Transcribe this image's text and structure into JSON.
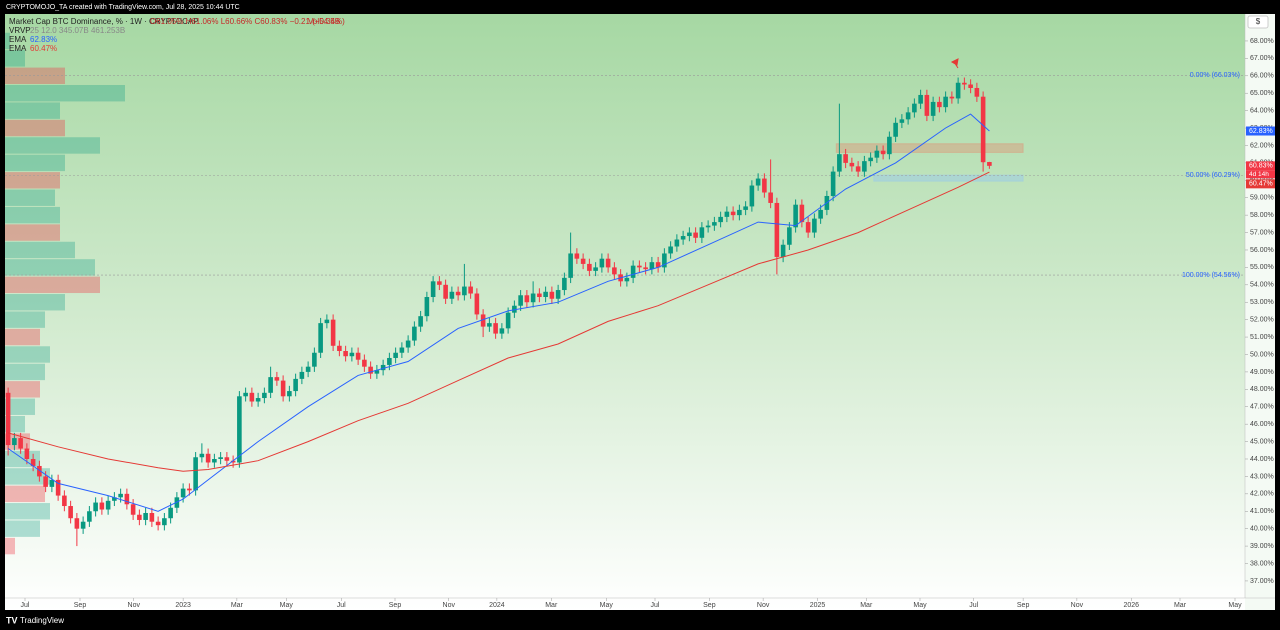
{
  "chart_data": {
    "type": "candlestick",
    "watermark": "CRYPTOMOJO_TA created with TradingView.com, Jul 28, 2025 10:44 UTC",
    "title": "Market Cap BTC Dominance, % · 1W · CRYPTOCAP",
    "ohlc_text": "O61.05% H61.06% L60.66% C60.83% −0.21 (−0.34%)",
    "volume_text": "Vol54.5B",
    "currency_button": "$",
    "brand": "TradingView",
    "up_color": "#089981",
    "down_color": "#f23645",
    "ylim": [
      36.02,
      69.49
    ],
    "xlim": [
      0,
      198.4
    ],
    "yticks": [
      {
        "value": 37,
        "label": "37.00%"
      },
      {
        "value": 38,
        "label": "38.00%"
      },
      {
        "value": 39,
        "label": "39.00%"
      },
      {
        "value": 40,
        "label": "40.00%"
      },
      {
        "value": 41,
        "label": "41.00%"
      },
      {
        "value": 42,
        "label": "42.00%"
      },
      {
        "value": 43,
        "label": "43.00%"
      },
      {
        "value": 44,
        "label": "44.00%"
      },
      {
        "value": 45,
        "label": "45.00%"
      },
      {
        "value": 46,
        "label": "46.00%"
      },
      {
        "value": 47,
        "label": "47.00%"
      },
      {
        "value": 48,
        "label": "48.00%"
      },
      {
        "value": 49,
        "label": "49.00%"
      },
      {
        "value": 50,
        "label": "50.00%"
      },
      {
        "value": 51,
        "label": "51.00%"
      },
      {
        "value": 52,
        "label": "52.00%"
      },
      {
        "value": 53,
        "label": "53.00%"
      },
      {
        "value": 54,
        "label": "54.00%"
      },
      {
        "value": 55,
        "label": "55.00%"
      },
      {
        "value": 56,
        "label": "56.00%"
      },
      {
        "value": 57,
        "label": "57.00%"
      },
      {
        "value": 58,
        "label": "58.00%"
      },
      {
        "value": 59,
        "label": "59.00%"
      },
      {
        "value": 60,
        "label": "60.00%"
      },
      {
        "value": 61,
        "label": "61.00%"
      },
      {
        "value": 62,
        "label": "62.00%"
      },
      {
        "value": 63,
        "label": "63.00%"
      },
      {
        "value": 64,
        "label": "64.00%"
      },
      {
        "value": 65,
        "label": "65.00%"
      },
      {
        "value": 66,
        "label": "66.00%"
      },
      {
        "value": 67,
        "label": "67.00%"
      },
      {
        "value": 68,
        "label": "68.00%"
      }
    ],
    "xticks": [
      {
        "value": 3.2,
        "label": "Jul"
      },
      {
        "value": 12,
        "label": "Sep"
      },
      {
        "value": 20.6,
        "label": "Nov"
      },
      {
        "value": 28.5,
        "label": "2023"
      },
      {
        "value": 37.1,
        "label": "Mar"
      },
      {
        "value": 45,
        "label": "May"
      },
      {
        "value": 53.8,
        "label": "Jul"
      },
      {
        "value": 62.4,
        "label": "Sep"
      },
      {
        "value": 71,
        "label": "Nov"
      },
      {
        "value": 78.7,
        "label": "2024"
      },
      {
        "value": 87.4,
        "label": "Mar"
      },
      {
        "value": 96.2,
        "label": "May"
      },
      {
        "value": 104,
        "label": "Jul"
      },
      {
        "value": 112.7,
        "label": "Sep"
      },
      {
        "value": 121.3,
        "label": "Nov"
      },
      {
        "value": 130,
        "label": "2025"
      },
      {
        "value": 137.8,
        "label": "Mar"
      },
      {
        "value": 146.4,
        "label": "May"
      },
      {
        "value": 155,
        "label": "Jul"
      },
      {
        "value": 162.9,
        "label": "Sep"
      },
      {
        "value": 171.5,
        "label": "Nov"
      },
      {
        "value": 180.2,
        "label": "2026"
      },
      {
        "value": 188,
        "label": "Mar"
      },
      {
        "value": 196.8,
        "label": "May"
      }
    ],
    "candles": [
      [
        47.8,
        48.1,
        44.2,
        44.8
      ],
      [
        44.8,
        45.5,
        44.5,
        45.2
      ],
      [
        45.2,
        45.5,
        44.3,
        44.6
      ],
      [
        44.6,
        44.9,
        43.7,
        44.0
      ],
      [
        44.0,
        44.3,
        43.3,
        43.6
      ],
      [
        43.6,
        43.9,
        42.7,
        43.0
      ],
      [
        43.0,
        43.3,
        42.1,
        42.4
      ],
      [
        42.4,
        43.1,
        42.1,
        42.8
      ],
      [
        42.8,
        43.1,
        41.6,
        41.9
      ],
      [
        41.9,
        42.2,
        41.0,
        41.3
      ],
      [
        41.3,
        41.6,
        40.3,
        40.6
      ],
      [
        40.6,
        40.9,
        39.0,
        40.0
      ],
      [
        40.0,
        40.7,
        39.7,
        40.4
      ],
      [
        40.4,
        41.3,
        40.1,
        41.0
      ],
      [
        41.0,
        41.8,
        40.7,
        41.5
      ],
      [
        41.5,
        41.8,
        40.8,
        41.1
      ],
      [
        41.1,
        41.9,
        40.8,
        41.6
      ],
      [
        41.6,
        42.1,
        41.3,
        41.8
      ],
      [
        41.8,
        42.3,
        41.5,
        42.0
      ],
      [
        42.0,
        42.3,
        41.1,
        41.4
      ],
      [
        41.4,
        41.7,
        40.5,
        40.8
      ],
      [
        40.8,
        41.1,
        40.2,
        40.5
      ],
      [
        40.5,
        41.2,
        40.2,
        40.9
      ],
      [
        40.9,
        41.2,
        40.1,
        40.4
      ],
      [
        40.4,
        40.7,
        39.9,
        40.2
      ],
      [
        40.2,
        40.9,
        39.9,
        40.6
      ],
      [
        40.6,
        41.5,
        40.3,
        41.2
      ],
      [
        41.2,
        42.1,
        40.9,
        41.8
      ],
      [
        41.8,
        42.6,
        41.5,
        42.3
      ],
      [
        42.3,
        42.6,
        41.9,
        42.2
      ],
      [
        42.2,
        44.4,
        41.9,
        44.1
      ],
      [
        44.1,
        44.9,
        43.8,
        44.3
      ],
      [
        44.3,
        44.6,
        43.5,
        43.8
      ],
      [
        43.8,
        44.3,
        43.5,
        44.0
      ],
      [
        44.0,
        44.4,
        43.7,
        44.1
      ],
      [
        44.1,
        44.4,
        43.6,
        43.9
      ],
      [
        43.9,
        44.2,
        43.5,
        43.8
      ],
      [
        43.8,
        47.9,
        43.5,
        47.6
      ],
      [
        47.6,
        48.1,
        47.3,
        47.8
      ],
      [
        47.8,
        48.1,
        47.0,
        47.3
      ],
      [
        47.3,
        47.8,
        47.0,
        47.5
      ],
      [
        47.5,
        48.1,
        47.2,
        47.8
      ],
      [
        47.8,
        49.3,
        47.5,
        48.7
      ],
      [
        48.7,
        49.0,
        48.2,
        48.5
      ],
      [
        48.5,
        48.8,
        47.3,
        47.6
      ],
      [
        47.6,
        48.2,
        47.3,
        47.9
      ],
      [
        47.9,
        48.9,
        47.6,
        48.6
      ],
      [
        48.6,
        49.3,
        48.3,
        49.0
      ],
      [
        49.0,
        49.6,
        48.7,
        49.3
      ],
      [
        49.3,
        50.4,
        49.0,
        50.1
      ],
      [
        50.1,
        52.1,
        49.8,
        51.8
      ],
      [
        51.8,
        52.3,
        51.5,
        52.0
      ],
      [
        52.0,
        52.3,
        50.2,
        50.5
      ],
      [
        50.5,
        50.8,
        49.9,
        50.2
      ],
      [
        50.2,
        50.5,
        49.6,
        49.9
      ],
      [
        49.9,
        50.4,
        49.6,
        50.1
      ],
      [
        50.1,
        50.4,
        49.4,
        49.7
      ],
      [
        49.7,
        50.0,
        49.0,
        49.3
      ],
      [
        49.3,
        49.6,
        48.6,
        48.9
      ],
      [
        48.9,
        49.4,
        48.6,
        49.1
      ],
      [
        49.1,
        49.7,
        48.8,
        49.4
      ],
      [
        49.4,
        50.1,
        49.1,
        49.8
      ],
      [
        49.8,
        50.4,
        49.5,
        50.1
      ],
      [
        50.1,
        50.7,
        49.8,
        50.4
      ],
      [
        50.4,
        51.1,
        50.1,
        50.8
      ],
      [
        50.8,
        51.9,
        50.5,
        51.6
      ],
      [
        51.6,
        52.5,
        51.3,
        52.2
      ],
      [
        52.2,
        53.6,
        51.9,
        53.3
      ],
      [
        53.3,
        54.5,
        53.0,
        54.2
      ],
      [
        54.2,
        54.5,
        53.7,
        54.0
      ],
      [
        54.0,
        54.3,
        52.9,
        53.2
      ],
      [
        53.2,
        53.9,
        52.9,
        53.6
      ],
      [
        53.6,
        53.9,
        53.1,
        53.4
      ],
      [
        53.4,
        55.2,
        53.1,
        53.9
      ],
      [
        53.9,
        54.2,
        53.2,
        53.5
      ],
      [
        53.5,
        53.8,
        52.0,
        52.3
      ],
      [
        52.3,
        52.6,
        51.0,
        51.6
      ],
      [
        51.6,
        52.1,
        51.3,
        51.8
      ],
      [
        51.8,
        52.1,
        50.9,
        51.2
      ],
      [
        51.2,
        51.8,
        50.9,
        51.5
      ],
      [
        51.5,
        52.7,
        51.2,
        52.4
      ],
      [
        52.4,
        53.1,
        52.1,
        52.8
      ],
      [
        52.8,
        53.7,
        52.5,
        53.4
      ],
      [
        53.4,
        53.7,
        52.7,
        53.0
      ],
      [
        53.0,
        54.2,
        52.7,
        53.5
      ],
      [
        53.5,
        53.8,
        53.0,
        53.3
      ],
      [
        53.3,
        53.9,
        53.0,
        53.6
      ],
      [
        53.6,
        53.9,
        52.9,
        53.2
      ],
      [
        53.2,
        54.0,
        52.9,
        53.7
      ],
      [
        53.7,
        54.7,
        53.4,
        54.4
      ],
      [
        54.4,
        57.0,
        54.1,
        55.8
      ],
      [
        55.8,
        56.1,
        55.2,
        55.5
      ],
      [
        55.5,
        55.8,
        54.9,
        55.2
      ],
      [
        55.2,
        55.5,
        54.5,
        54.8
      ],
      [
        54.8,
        55.3,
        54.5,
        55.0
      ],
      [
        55.0,
        55.8,
        54.7,
        55.5
      ],
      [
        55.5,
        55.8,
        54.7,
        55.0
      ],
      [
        55.0,
        55.3,
        54.3,
        54.6
      ],
      [
        54.6,
        54.9,
        53.9,
        54.2
      ],
      [
        54.2,
        54.7,
        53.9,
        54.4
      ],
      [
        54.4,
        55.4,
        54.1,
        55.1
      ],
      [
        55.1,
        55.4,
        54.7,
        55.0
      ],
      [
        55.0,
        55.3,
        54.6,
        54.9
      ],
      [
        54.9,
        55.6,
        54.6,
        55.3
      ],
      [
        55.3,
        55.6,
        54.7,
        55.0
      ],
      [
        55.0,
        56.1,
        54.7,
        55.8
      ],
      [
        55.8,
        56.5,
        55.5,
        56.2
      ],
      [
        56.2,
        56.9,
        55.9,
        56.6
      ],
      [
        56.6,
        57.1,
        56.3,
        56.8
      ],
      [
        56.8,
        57.3,
        56.5,
        57.0
      ],
      [
        57.0,
        57.3,
        56.4,
        56.7
      ],
      [
        56.7,
        57.6,
        56.4,
        57.3
      ],
      [
        57.3,
        57.7,
        57.0,
        57.4
      ],
      [
        57.4,
        57.9,
        57.1,
        57.6
      ],
      [
        57.6,
        58.2,
        57.3,
        57.9
      ],
      [
        57.9,
        58.5,
        57.6,
        58.2
      ],
      [
        58.2,
        58.5,
        57.7,
        58.0
      ],
      [
        58.0,
        58.6,
        57.7,
        58.3
      ],
      [
        58.3,
        58.8,
        58.0,
        58.5
      ],
      [
        58.5,
        60.0,
        58.2,
        59.7
      ],
      [
        59.7,
        60.4,
        59.4,
        60.1
      ],
      [
        60.1,
        60.4,
        59.0,
        59.3
      ],
      [
        59.3,
        61.2,
        58.4,
        58.7
      ],
      [
        58.7,
        59.0,
        54.6,
        55.6
      ],
      [
        55.6,
        56.6,
        55.3,
        56.3
      ],
      [
        56.3,
        57.6,
        56.0,
        57.3
      ],
      [
        57.3,
        58.9,
        57.0,
        58.6
      ],
      [
        58.6,
        58.9,
        57.3,
        57.6
      ],
      [
        57.6,
        57.9,
        56.7,
        57.0
      ],
      [
        57.0,
        58.1,
        56.7,
        57.8
      ],
      [
        57.8,
        58.6,
        57.5,
        58.3
      ],
      [
        58.3,
        59.4,
        58.0,
        59.1
      ],
      [
        59.1,
        60.8,
        58.8,
        60.5
      ],
      [
        60.5,
        64.4,
        60.2,
        61.5
      ],
      [
        61.5,
        61.8,
        60.7,
        61.0
      ],
      [
        61.0,
        61.3,
        60.5,
        60.8
      ],
      [
        60.8,
        61.1,
        60.2,
        60.5
      ],
      [
        60.5,
        61.4,
        60.2,
        61.1
      ],
      [
        61.1,
        61.6,
        60.8,
        61.3
      ],
      [
        61.3,
        62.0,
        61.0,
        61.7
      ],
      [
        61.7,
        62.0,
        61.2,
        61.5
      ],
      [
        61.5,
        62.8,
        61.2,
        62.5
      ],
      [
        62.5,
        63.6,
        62.2,
        63.3
      ],
      [
        63.3,
        63.8,
        63.0,
        63.5
      ],
      [
        63.5,
        64.2,
        63.2,
        63.9
      ],
      [
        63.9,
        64.7,
        63.6,
        64.4
      ],
      [
        64.4,
        65.2,
        64.1,
        64.9
      ],
      [
        64.9,
        65.2,
        63.4,
        63.7
      ],
      [
        63.7,
        64.8,
        63.4,
        64.5
      ],
      [
        64.5,
        64.8,
        63.9,
        64.2
      ],
      [
        64.2,
        65.1,
        63.9,
        64.8
      ],
      [
        64.8,
        65.1,
        64.4,
        64.7
      ],
      [
        64.7,
        65.9,
        64.4,
        65.6
      ],
      [
        65.6,
        65.9,
        65.2,
        65.5
      ],
      [
        65.5,
        65.8,
        65.0,
        65.3
      ],
      [
        65.3,
        65.6,
        64.5,
        64.8
      ],
      [
        64.8,
        65.1,
        60.5,
        61.04
      ],
      [
        61.05,
        61.06,
        60.66,
        60.83
      ]
    ],
    "series": [
      {
        "name": "EMA",
        "legend_value": "62.83%",
        "color": "#2962ff",
        "x": [
          0.5,
          8.5,
          16.5,
          24.5,
          28.5,
          32.5,
          40.5,
          48.5,
          56.5,
          64.5,
          72.5,
          80.5,
          88.5,
          96.5,
          104.5,
          112.5,
          120.5,
          126.5,
          134.5,
          142.5,
          150.5,
          154.5,
          157.5
        ],
        "values": [
          44.6,
          42.6,
          41.9,
          41.0,
          41.7,
          42.8,
          45.0,
          47.0,
          48.8,
          49.6,
          51.5,
          52.5,
          53.0,
          54.2,
          55.0,
          56.3,
          57.6,
          57.4,
          59.5,
          61.0,
          63.0,
          63.8,
          62.83
        ]
      },
      {
        "name": "EMA",
        "legend_value": "60.47%",
        "color": "#e53935",
        "x": [
          0.5,
          8.5,
          16.5,
          24.5,
          28.5,
          32.5,
          40.5,
          48.5,
          56.5,
          64.5,
          72.5,
          80.5,
          88.5,
          96.5,
          104.5,
          112.5,
          120.5,
          128.5,
          136.5,
          144.5,
          152.5,
          157.5
        ],
        "values": [
          45.5,
          44.7,
          44.0,
          43.5,
          43.3,
          43.4,
          43.9,
          45.0,
          46.2,
          47.2,
          48.5,
          49.8,
          50.6,
          51.9,
          52.8,
          54.0,
          55.2,
          56.0,
          57.0,
          58.3,
          59.6,
          60.47
        ]
      }
    ],
    "vrvp": {
      "name": "VRVP",
      "legend_value": "25 12.0 345.07B 461.253B",
      "bins": [
        38.5,
        39.5,
        40.5,
        41.5,
        42.5,
        43.5,
        44.5,
        45.5,
        46.5,
        47.5,
        48.5,
        49.5,
        50.5,
        51.5,
        52.5,
        53.5,
        54.5,
        55.5,
        56.5,
        57.5,
        58.5,
        59.5,
        60.5,
        61.5,
        62.5,
        63.5,
        64.5,
        65.5,
        66.5,
        67.5,
        68.5
      ],
      "values": [
        10,
        35,
        45,
        40,
        45,
        35,
        25,
        20,
        30,
        35,
        40,
        45,
        35,
        40,
        60,
        95,
        90,
        70,
        55,
        55,
        50,
        55,
        60,
        95,
        60,
        55,
        120,
        60,
        20,
        5
      ]
    },
    "fib_levels": [
      {
        "value": 66.03,
        "label": "0.00% (66.03%)"
      },
      {
        "value": 60.29,
        "label": "50.00% (60.29%)"
      },
      {
        "value": 54.56,
        "label": "100.00% (54.56%)"
      }
    ],
    "zones": [
      {
        "ylim": [
          61.6,
          62.1
        ],
        "xlim": [
          133,
          162.9
        ],
        "color": "rgba(222,150,120,0.45)"
      },
      {
        "ylim": [
          59.95,
          60.3
        ],
        "xlim": [
          139,
          162.9
        ],
        "color": "rgba(150,200,240,0.45)"
      }
    ],
    "price_labels": [
      {
        "value": 62.83,
        "label": "62.83%",
        "color": "#2962ff"
      },
      {
        "value": 60.83,
        "label": "60.83%",
        "color": "#f23645"
      },
      {
        "value": 60.47,
        "label": "60.47%",
        "color": "#e53935"
      }
    ],
    "countdown": "4d 14h"
  }
}
